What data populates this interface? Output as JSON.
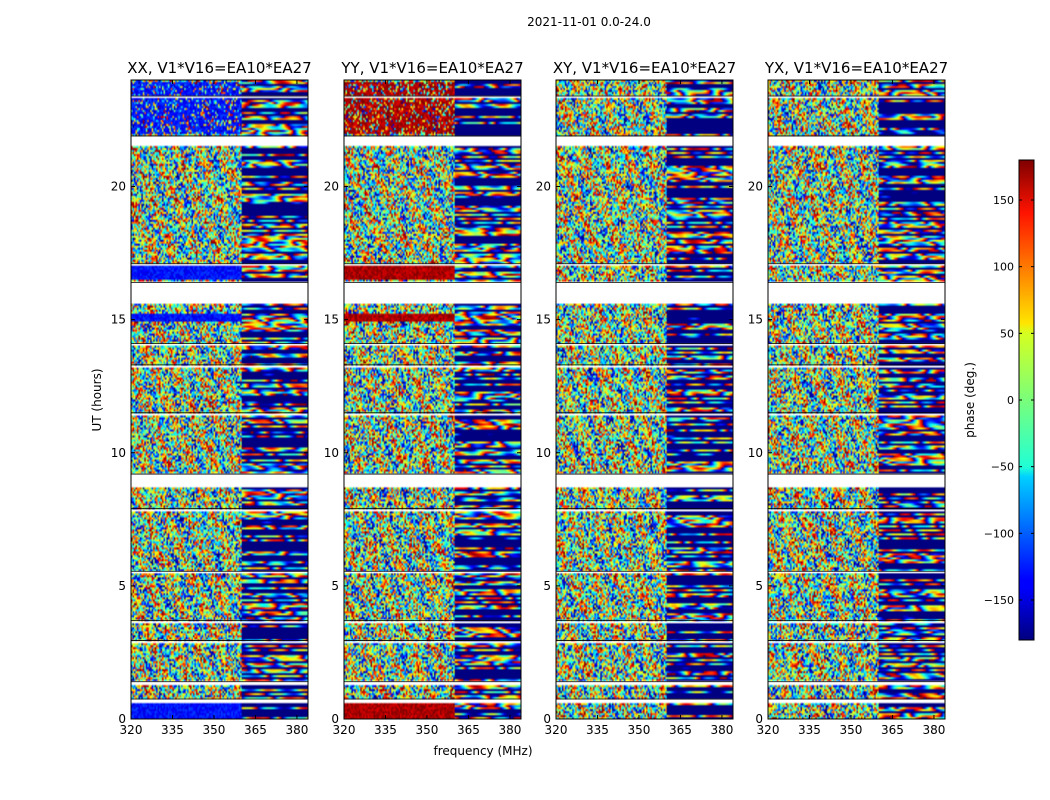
{
  "figure_title": "2021-11-01 0.0-24.0",
  "chart_data": {
    "type": "heatmap",
    "title": "2021-11-01 0.0-24.0",
    "xlabel": "frequency (MHz)",
    "ylabel": "UT (hours)",
    "xlim": [
      320,
      384
    ],
    "ylim": [
      0,
      24
    ],
    "xticks": [
      320,
      335,
      350,
      365,
      380
    ],
    "yticks": [
      0,
      5,
      10,
      15,
      20
    ],
    "panels": [
      {
        "title": "XX, V1*V16=EA10*EA27",
        "correlation": "XX",
        "bias": -130
      },
      {
        "title": "YY, V1*V16=EA10*EA27",
        "correlation": "YY",
        "bias": 165
      },
      {
        "title": "XY, V1*V16=EA10*EA27",
        "correlation": "XY",
        "bias": null
      },
      {
        "title": "YX, V1*V16=EA10*EA27",
        "correlation": "YX",
        "bias": null
      }
    ],
    "colorbar": {
      "label": "phase (deg.)",
      "range": [
        -180,
        180
      ],
      "ticks": [
        150,
        100,
        50,
        0,
        -50,
        -100,
        -150
      ],
      "tick_labels": [
        "150",
        "100",
        "50",
        "0",
        "−50",
        "−100",
        "−150"
      ],
      "colormap": "jet"
    },
    "data_gaps_hours": [
      [
        0.6,
        0.75
      ],
      [
        1.3,
        1.4
      ],
      [
        2.85,
        2.95
      ],
      [
        3.6,
        3.7
      ],
      [
        5.5,
        5.55
      ],
      [
        7.8,
        7.9
      ],
      [
        8.7,
        9.2
      ],
      [
        11.4,
        11.5
      ],
      [
        13.2,
        13.3
      ],
      [
        14.0,
        14.1
      ],
      [
        15.6,
        16.4
      ],
      [
        17.0,
        17.1
      ],
      [
        21.5,
        21.9
      ],
      [
        23.3,
        23.4
      ]
    ]
  }
}
